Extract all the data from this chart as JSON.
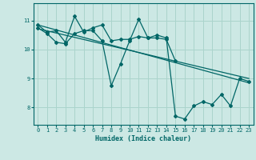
{
  "xlabel": "Humidex (Indice chaleur)",
  "bg_color": "#cce8e4",
  "grid_color": "#aad4cc",
  "line_color": "#006666",
  "xlim": [
    -0.5,
    23.5
  ],
  "ylim": [
    7.4,
    11.6
  ],
  "x_ticks": [
    0,
    1,
    2,
    3,
    4,
    5,
    6,
    7,
    8,
    9,
    10,
    11,
    12,
    13,
    14,
    15,
    16,
    17,
    18,
    19,
    20,
    21,
    22,
    23
  ],
  "y_ticks": [
    8,
    9,
    10,
    11
  ],
  "main_x": [
    0,
    1,
    2,
    3,
    4,
    5,
    6,
    7,
    8,
    9,
    10,
    11,
    12,
    13,
    14,
    15,
    16,
    17,
    18,
    19,
    20,
    21,
    22,
    23
  ],
  "main_y": [
    10.75,
    10.55,
    10.25,
    10.2,
    10.55,
    10.65,
    10.65,
    10.3,
    8.75,
    9.5,
    10.3,
    11.05,
    10.4,
    10.5,
    10.4,
    7.7,
    7.6,
    8.05,
    8.2,
    8.1,
    8.45,
    8.05,
    9.0,
    8.9
  ],
  "line2_x": [
    0,
    1,
    2,
    3,
    4,
    5,
    6,
    7,
    8,
    9,
    10,
    11,
    12,
    13,
    14,
    15
  ],
  "line2_y": [
    10.85,
    10.6,
    10.65,
    10.25,
    11.15,
    10.6,
    10.75,
    10.85,
    10.3,
    10.35,
    10.35,
    10.45,
    10.4,
    10.4,
    10.35,
    9.6
  ],
  "trend1_x": [
    0,
    23
  ],
  "trend1_y": [
    10.85,
    8.85
  ],
  "trend2_x": [
    0,
    23
  ],
  "trend2_y": [
    10.72,
    9.0
  ]
}
